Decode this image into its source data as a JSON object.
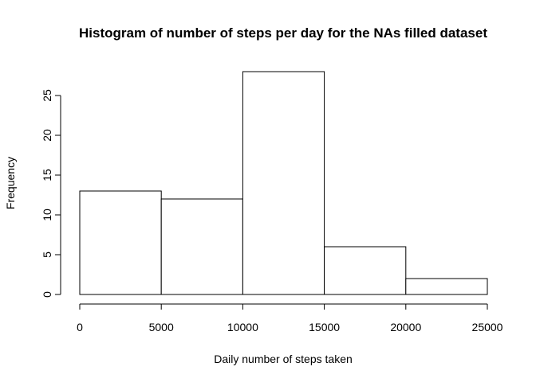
{
  "chart_data": {
    "type": "bar",
    "subtype": "histogram",
    "title": "Histogram of number of steps per day for the NAs filled dataset",
    "xlabel": "Daily number of steps taken",
    "ylabel": "Frequency",
    "bins": [
      {
        "from": 0,
        "to": 5000,
        "count": 13
      },
      {
        "from": 5000,
        "to": 10000,
        "count": 12
      },
      {
        "from": 10000,
        "to": 15000,
        "count": 28
      },
      {
        "from": 15000,
        "to": 20000,
        "count": 6
      },
      {
        "from": 20000,
        "to": 25000,
        "count": 2
      }
    ],
    "x_ticks": [
      0,
      5000,
      10000,
      15000,
      20000,
      25000
    ],
    "y_ticks": [
      0,
      5,
      10,
      15,
      20,
      25
    ],
    "xlim": [
      0,
      25000
    ],
    "ylim": [
      0,
      28
    ],
    "grid": false,
    "bar_fill": "#ffffff",
    "bar_stroke": "#000000"
  }
}
